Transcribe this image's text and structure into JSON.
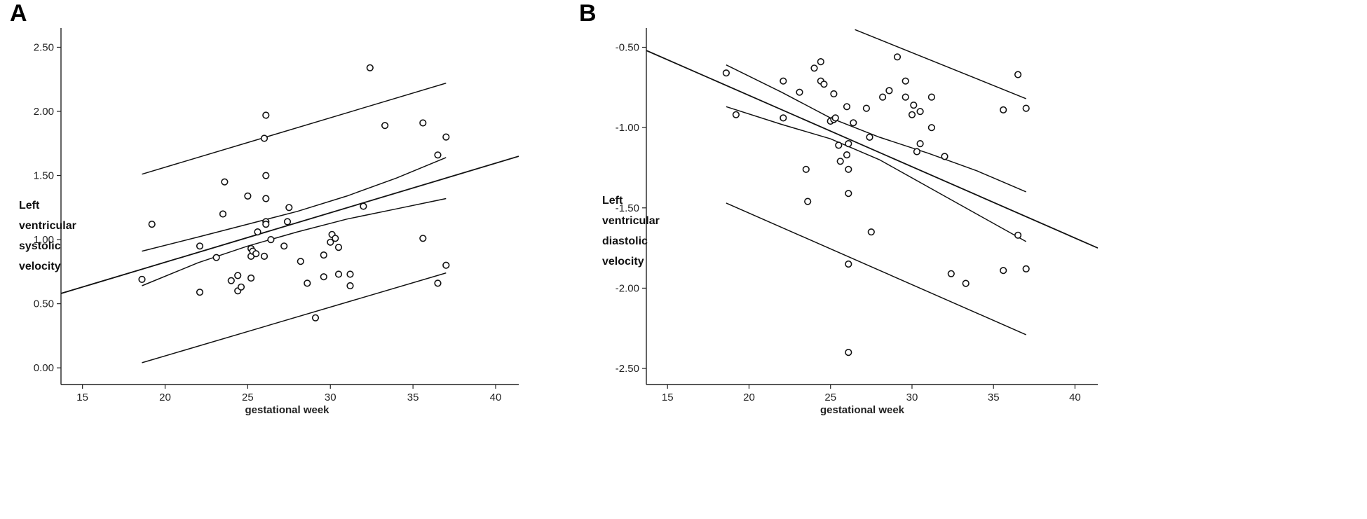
{
  "chart_data": [
    {
      "panel_label": "A",
      "type": "scatter",
      "xlabel": "gestational week",
      "ylabel_lines": [
        "Left",
        "ventricular",
        "systolic",
        "velocity"
      ],
      "xlim": [
        13.7,
        41.4
      ],
      "ylim": [
        -0.13,
        2.65
      ],
      "xticks": [
        15,
        20,
        25,
        30,
        35,
        40
      ],
      "yticks": [
        0.0,
        0.5,
        1.0,
        1.5,
        2.0,
        2.5
      ],
      "ytick_labels": [
        "0.00",
        "0.50",
        "1.00",
        "1.50",
        "2.00",
        "2.50"
      ],
      "grid": false,
      "fit_line": {
        "x": [
          13.7,
          41.4
        ],
        "y": [
          0.58,
          1.65
        ]
      },
      "ci_mean": {
        "upper": {
          "x": [
            18.6,
            22,
            25,
            28,
            31,
            34,
            37
          ],
          "y": [
            0.91,
            1.02,
            1.12,
            1.22,
            1.34,
            1.48,
            1.64
          ]
        },
        "lower": {
          "x": [
            18.6,
            22,
            25,
            28,
            31,
            34,
            37
          ],
          "y": [
            0.64,
            0.82,
            0.95,
            1.06,
            1.16,
            1.24,
            1.32
          ]
        }
      },
      "pred_interval": {
        "upper": {
          "x": [
            18.6,
            37
          ],
          "y": [
            1.51,
            2.22
          ]
        },
        "lower": {
          "x": [
            18.6,
            37
          ],
          "y": [
            0.04,
            0.74
          ]
        }
      },
      "points": [
        [
          18.6,
          0.69
        ],
        [
          19.2,
          1.12
        ],
        [
          22.1,
          0.95
        ],
        [
          22.1,
          0.59
        ],
        [
          23.1,
          0.86
        ],
        [
          23.5,
          1.2
        ],
        [
          23.6,
          1.45
        ],
        [
          24.0,
          0.68
        ],
        [
          24.4,
          0.6
        ],
        [
          24.4,
          0.72
        ],
        [
          24.6,
          0.63
        ],
        [
          25.0,
          1.34
        ],
        [
          25.2,
          0.7
        ],
        [
          25.2,
          0.87
        ],
        [
          25.2,
          0.93
        ],
        [
          25.3,
          0.91
        ],
        [
          25.5,
          0.89
        ],
        [
          25.6,
          1.06
        ],
        [
          26.0,
          0.87
        ],
        [
          26.0,
          1.79
        ],
        [
          26.1,
          1.97
        ],
        [
          26.1,
          1.5
        ],
        [
          26.1,
          1.32
        ],
        [
          26.1,
          1.14
        ],
        [
          26.1,
          1.12
        ],
        [
          26.4,
          1.0
        ],
        [
          27.2,
          0.95
        ],
        [
          27.4,
          1.14
        ],
        [
          27.5,
          1.25
        ],
        [
          28.2,
          0.83
        ],
        [
          28.6,
          0.66
        ],
        [
          29.1,
          0.39
        ],
        [
          29.6,
          0.88
        ],
        [
          29.6,
          0.71
        ],
        [
          30.0,
          0.98
        ],
        [
          30.1,
          1.04
        ],
        [
          30.3,
          1.01
        ],
        [
          30.5,
          0.94
        ],
        [
          30.5,
          0.73
        ],
        [
          31.2,
          0.73
        ],
        [
          31.2,
          0.64
        ],
        [
          32.0,
          1.26
        ],
        [
          32.4,
          2.34
        ],
        [
          33.3,
          1.89
        ],
        [
          35.6,
          1.91
        ],
        [
          35.6,
          1.01
        ],
        [
          36.5,
          1.66
        ],
        [
          36.5,
          0.66
        ],
        [
          37.0,
          1.8
        ],
        [
          37.0,
          0.8
        ]
      ]
    },
    {
      "panel_label": "B",
      "type": "scatter",
      "xlabel": "gestational week",
      "ylabel_lines": [
        "Left",
        "ventricular",
        "diastolic",
        "velocity"
      ],
      "xlim": [
        13.7,
        41.4
      ],
      "ylim": [
        -2.6,
        -0.38
      ],
      "xticks": [
        15,
        20,
        25,
        30,
        35,
        40
      ],
      "yticks": [
        -0.5,
        -1.0,
        -1.5,
        -2.0,
        -2.5
      ],
      "ytick_labels": [
        "-0.50",
        "-1.00",
        "-1.50",
        "-2.00",
        "-2.50"
      ],
      "grid": false,
      "fit_line": {
        "x": [
          13.7,
          41.4
        ],
        "y": [
          -0.52,
          -1.75
        ]
      },
      "ci_mean": {
        "upper": {
          "x": [
            18.6,
            22,
            25,
            28,
            31,
            34,
            37
          ],
          "y": [
            -0.61,
            -0.78,
            -0.94,
            -1.06,
            -1.16,
            -1.27,
            -1.4
          ]
        },
        "lower": {
          "x": [
            18.6,
            22,
            25,
            28,
            31,
            34,
            37
          ],
          "y": [
            -0.87,
            -0.98,
            -1.07,
            -1.2,
            -1.37,
            -1.54,
            -1.71
          ]
        }
      },
      "pred_interval": {
        "upper": {
          "x": [
            26.5,
            37
          ],
          "y": [
            -0.39,
            -0.82
          ]
        },
        "lower": {
          "x": [
            18.6,
            37
          ],
          "y": [
            -1.47,
            -2.29
          ]
        }
      },
      "points": [
        [
          18.6,
          -0.66
        ],
        [
          19.2,
          -0.92
        ],
        [
          22.1,
          -0.71
        ],
        [
          22.1,
          -0.94
        ],
        [
          23.1,
          -0.78
        ],
        [
          23.5,
          -1.26
        ],
        [
          23.6,
          -1.46
        ],
        [
          24.0,
          -0.63
        ],
        [
          24.4,
          -0.59
        ],
        [
          24.4,
          -0.71
        ],
        [
          24.6,
          -0.73
        ],
        [
          25.0,
          -0.96
        ],
        [
          25.2,
          -0.79
        ],
        [
          25.2,
          -0.95
        ],
        [
          25.3,
          -0.94
        ],
        [
          25.5,
          -1.11
        ],
        [
          25.6,
          -1.21
        ],
        [
          26.0,
          -0.87
        ],
        [
          26.0,
          -1.17
        ],
        [
          26.1,
          -1.1
        ],
        [
          26.1,
          -1.26
        ],
        [
          26.1,
          -1.41
        ],
        [
          26.1,
          -1.85
        ],
        [
          26.1,
          -2.4
        ],
        [
          26.4,
          -0.97
        ],
        [
          27.2,
          -0.88
        ],
        [
          27.4,
          -1.06
        ],
        [
          27.5,
          -1.65
        ],
        [
          28.2,
          -0.81
        ],
        [
          28.6,
          -0.77
        ],
        [
          29.1,
          -0.56
        ],
        [
          29.6,
          -0.71
        ],
        [
          29.6,
          -0.81
        ],
        [
          30.0,
          -0.92
        ],
        [
          30.1,
          -0.86
        ],
        [
          30.3,
          -1.15
        ],
        [
          30.5,
          -0.9
        ],
        [
          30.5,
          -1.1
        ],
        [
          31.2,
          -0.81
        ],
        [
          31.2,
          -1.0
        ],
        [
          32.0,
          -1.18
        ],
        [
          32.4,
          -1.91
        ],
        [
          33.3,
          -1.97
        ],
        [
          35.6,
          -0.89
        ],
        [
          35.6,
          -1.89
        ],
        [
          36.5,
          -0.67
        ],
        [
          36.5,
          -1.67
        ],
        [
          37.0,
          -0.88
        ],
        [
          37.0,
          -1.88
        ]
      ]
    }
  ]
}
